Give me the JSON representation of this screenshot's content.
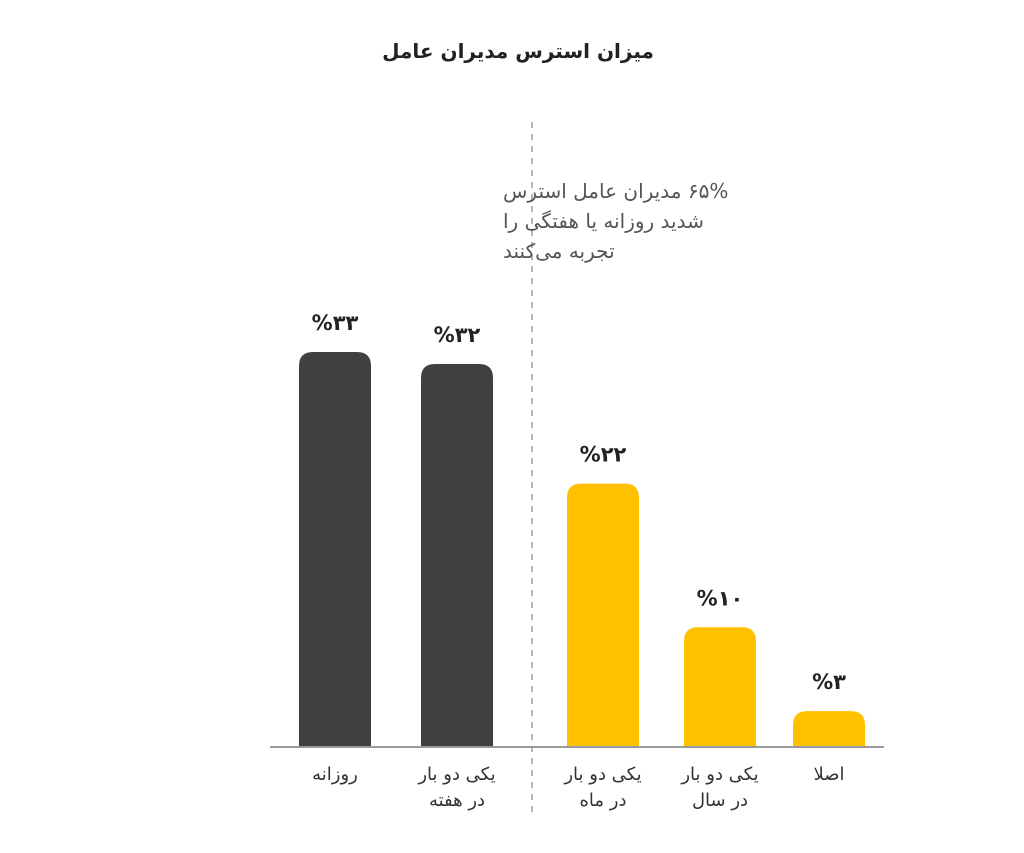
{
  "chart_data": {
    "type": "bar",
    "title": "میزان استرس مدیران عامل",
    "annotation": [
      "۶۵% مدیران عامل استرس",
      "شدید روزانه یا هفتگی را",
      "تجربه می‌کنند"
    ],
    "categories": [
      [
        "روزانه"
      ],
      [
        "یکی دو بار",
        "در هفته"
      ],
      [
        "یکی دو بار",
        "در ماه"
      ],
      [
        "یکی دو بار",
        "در سال"
      ],
      [
        "اصلا"
      ]
    ],
    "values": [
      33,
      32,
      22,
      10,
      3
    ],
    "value_labels": [
      "%۳۳",
      "%۳۲",
      "%۲۲",
      "%۱۰",
      "%۳"
    ],
    "colors": [
      "#404040",
      "#404040",
      "#FFC000",
      "#FFC000",
      "#FFC000"
    ],
    "ylim": [
      0,
      33
    ],
    "grid": false,
    "legend": "none",
    "xlabel": "",
    "ylabel": ""
  }
}
